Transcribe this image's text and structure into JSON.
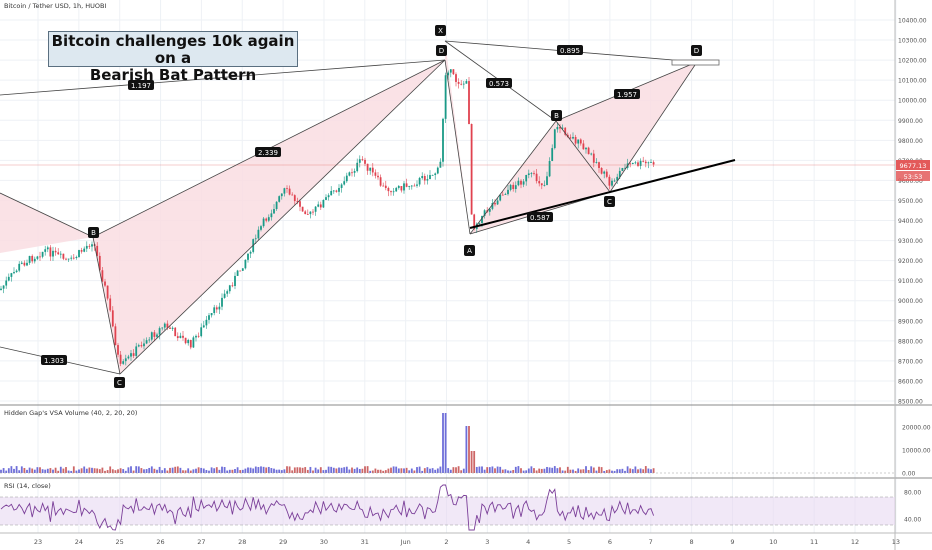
{
  "symbol_title": "Bitcoin / Tether USD, 1h, HUOBI",
  "callout": {
    "line1": "Bitcoin challenges 10k again on a",
    "line2": "Bearish Bat Pattern"
  },
  "price_axis_labels": [
    "10400.00",
    "10300.00",
    "10200.00",
    "10100.00",
    "10000.00",
    "9900.00",
    "9800.00",
    "9700.00",
    "9600.00",
    "9500.00",
    "9400.00",
    "9300.00",
    "9200.00",
    "9100.00",
    "9000.00",
    "8900.00",
    "8800.00",
    "8700.00",
    "8600.00",
    "8500.00"
  ],
  "current_price": "9677.13",
  "countdown": "53:53",
  "volume_indicator": {
    "title": "Hidden Gap's VSA Volume (40, 2, 20, 20)",
    "axis_labels": [
      "20000.00",
      "10000.00",
      "0.00"
    ]
  },
  "rsi_indicator": {
    "title": "RSI (14, close)",
    "axis_labels": [
      "80.00",
      "40.00"
    ]
  },
  "time_axis_labels": [
    "23",
    "24",
    "25",
    "26",
    "27",
    "28",
    "29",
    "30",
    "31",
    "Jun",
    "2",
    "3",
    "4",
    "5",
    "6",
    "7",
    "8",
    "9",
    "10",
    "11",
    "12",
    "13"
  ],
  "pattern_points": {
    "left_B": "B",
    "left_C": "C",
    "X": "X",
    "D_top": "D",
    "A": "A",
    "B": "B",
    "C": "C",
    "D_target": "D"
  },
  "ratios": {
    "r1": "1.197",
    "r2": "2.339",
    "r3": "1.303",
    "xb": "0.895",
    "ab": "0.573",
    "bd": "1.957",
    "ac": "0.587"
  },
  "colors": {
    "pattern_fill": "#f9dde2",
    "pattern_line": "#444444",
    "candle_up": "#1a9a87",
    "candle_down": "#e0424f",
    "price_line": "#e35a5a",
    "rsi_line": "#7b3f99",
    "rsi_band": "#e8d8f2"
  }
}
